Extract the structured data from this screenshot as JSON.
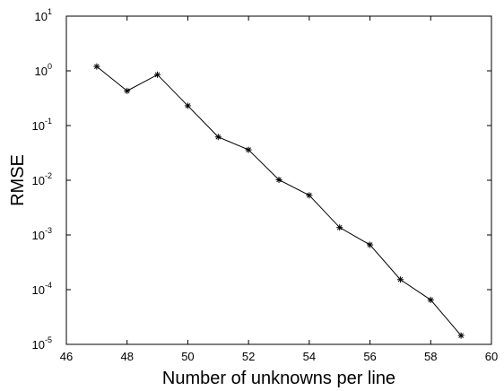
{
  "chart_data": {
    "type": "line",
    "title": "",
    "xlabel": "Number of unknowns per line",
    "ylabel": "RMSE",
    "xlim": [
      46,
      60
    ],
    "ylim": [
      1e-05,
      10
    ],
    "yscale": "log",
    "grid": false,
    "legend": "none",
    "x_ticks": [
      46,
      48,
      50,
      52,
      54,
      56,
      58,
      60
    ],
    "y_ticks": [
      {
        "value": 1e-05,
        "base": "10",
        "exp": "-5"
      },
      {
        "value": 0.0001,
        "base": "10",
        "exp": "-4"
      },
      {
        "value": 0.001,
        "base": "10",
        "exp": "-3"
      },
      {
        "value": 0.01,
        "base": "10",
        "exp": "-2"
      },
      {
        "value": 0.1,
        "base": "10",
        "exp": "-1"
      },
      {
        "value": 1,
        "base": "10",
        "exp": "0"
      },
      {
        "value": 10,
        "base": "10",
        "exp": "1"
      }
    ],
    "series": [
      {
        "marker": "asterisk",
        "color": "#000000",
        "x": [
          47,
          48,
          49,
          50,
          51,
          52,
          53,
          54,
          55,
          56,
          57,
          58,
          59
        ],
        "y": [
          1.2,
          0.43,
          0.85,
          0.23,
          0.062,
          0.036,
          0.0102,
          0.0053,
          0.00137,
          0.00066,
          0.000153,
          6.5e-05,
          1.45e-05
        ]
      }
    ]
  }
}
